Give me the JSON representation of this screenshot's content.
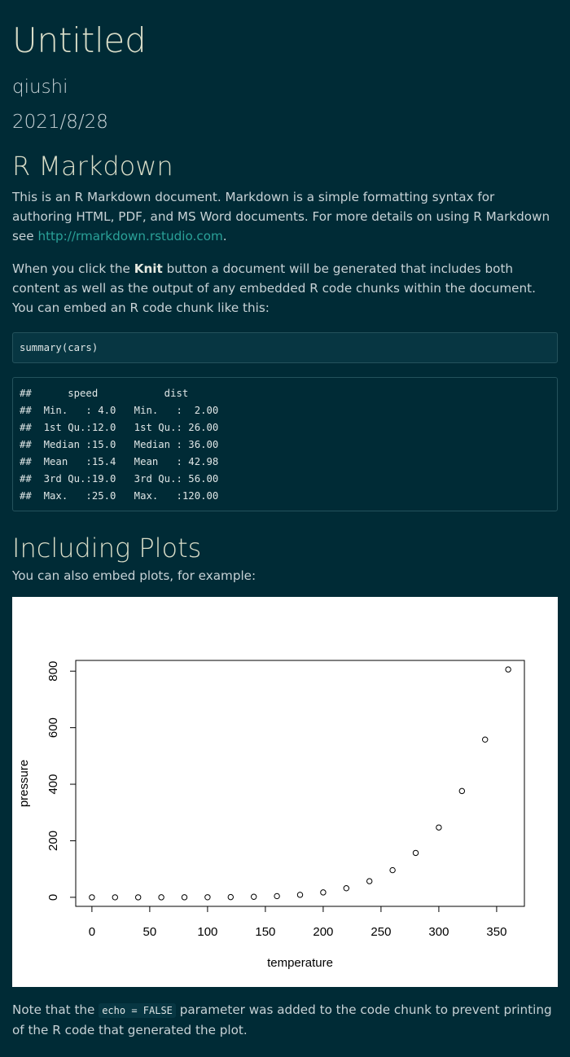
{
  "header": {
    "title": "Untitled",
    "author": "qiushi",
    "date": "2021/8/28"
  },
  "section_rmd": {
    "heading": "R Markdown",
    "para1_text": "This is an R Markdown document. Markdown is a simple formatting syntax for authoring HTML, PDF, and MS Word documents. For more details on using R Markdown see ",
    "para1_link": "http://rmarkdown.rstudio.com",
    "para1_end": ".",
    "para2_before": "When you click the ",
    "para2_bold": "Knit",
    "para2_after": " button a document will be generated that includes both content as well as the output of any embedded R code chunks within the document. You can embed an R code chunk like this:",
    "code": "summary(cars)",
    "output": "##      speed           dist       \n##  Min.   : 4.0   Min.   :  2.00  \n##  1st Qu.:12.0   1st Qu.: 26.00  \n##  Median :15.0   Median : 36.00  \n##  Mean   :15.4   Mean   : 42.98  \n##  3rd Qu.:19.0   3rd Qu.: 56.00  \n##  Max.   :25.0   Max.   :120.00  "
  },
  "section_plots": {
    "heading": "Including Plots",
    "intro": "You can also embed plots, for example:",
    "note_before": "Note that the ",
    "note_code": "echo = FALSE",
    "note_after": " parameter was added to the code chunk to prevent printing of the R code that generated the plot."
  },
  "chart_data": {
    "type": "scatter",
    "title": "",
    "xlabel": "temperature",
    "ylabel": "pressure",
    "xlim": [
      -14,
      374
    ],
    "ylim": [
      -32,
      838
    ],
    "xticks": [
      0,
      50,
      100,
      150,
      200,
      250,
      300,
      350
    ],
    "yticks": [
      0,
      200,
      400,
      600,
      800
    ],
    "grid": false,
    "marker": "open-circle",
    "x": [
      0,
      20,
      40,
      60,
      80,
      100,
      120,
      140,
      160,
      180,
      200,
      220,
      240,
      260,
      280,
      300,
      320,
      340,
      360
    ],
    "y": [
      0.0002,
      0.0012,
      0.006,
      0.03,
      0.09,
      0.27,
      0.75,
      1.85,
      4.2,
      8.8,
      17.3,
      32.1,
      57,
      96,
      157,
      247,
      376,
      558,
      806
    ]
  }
}
